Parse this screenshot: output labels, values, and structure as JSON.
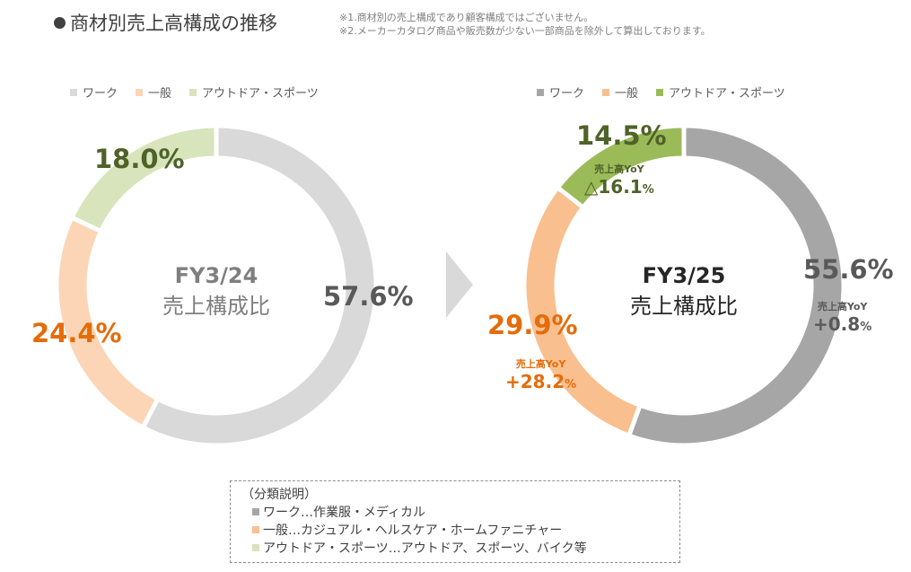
{
  "title": "商材別売上高構成の推移",
  "notes": [
    "※1.商材別の売上構成であり顧客構成ではございません。",
    "※2.メーカーカタログ商品や販売数が少ない一部商品を除外して算出しております。"
  ],
  "colors": {
    "work_left": "#d9d9d9",
    "general_left": "#fbd5b5",
    "outdoor_left": "#d8e4bc",
    "work_right": "#a6a6a6",
    "general_right": "#f9bf8f",
    "outdoor_right": "#9bbb59",
    "work_text": "#595959",
    "general_text": "#e46c0a",
    "outdoor_text": "#4f6228",
    "arrow": "#d9d9d9"
  },
  "legend": [
    "ワーク",
    "一般",
    "アウトドア・スポーツ"
  ],
  "chart_data": [
    {
      "type": "pie",
      "center_title": "FY3/24",
      "center_subtitle": "売上構成比",
      "categories": [
        "ワーク",
        "一般",
        "アウトドア・スポーツ"
      ],
      "values": [
        57.6,
        24.4,
        18.0
      ],
      "labels": [
        "57.6%",
        "24.4%",
        "18.0%"
      ]
    },
    {
      "type": "pie",
      "center_title": "FY3/25",
      "center_subtitle": "売上構成比",
      "categories": [
        "ワーク",
        "一般",
        "アウトドア・スポーツ"
      ],
      "values": [
        55.6,
        29.9,
        14.5
      ],
      "labels": [
        "55.6%",
        "29.9%",
        "14.5%"
      ],
      "yoy_title": "売上高YoY",
      "yoy_values": [
        {
          "main": "+0.8",
          "unit": "%"
        },
        {
          "main": "+28.2",
          "unit": "%"
        },
        {
          "main": "△16.1",
          "unit": "%"
        }
      ]
    }
  ],
  "classification": {
    "heading": "（分類説明）",
    "rows": [
      "ワーク…作業服・メディカル",
      "一般…カジュアル・ヘルスケア・ホームファニチャー",
      "アウトドア・スポーツ…アウトドア、スポーツ、バイク等"
    ]
  }
}
